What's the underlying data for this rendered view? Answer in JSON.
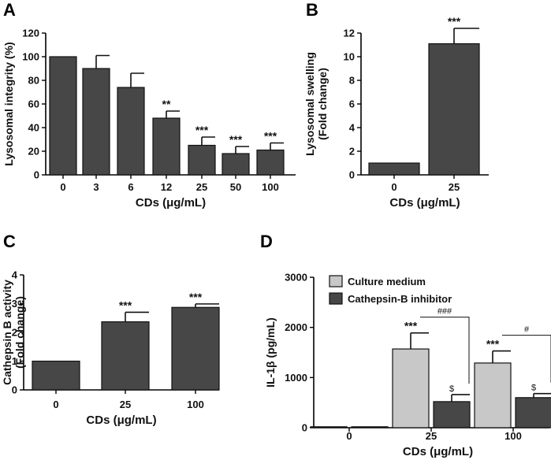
{
  "chart_data": [
    {
      "panel": "A",
      "type": "bar",
      "xlabel": "CDs (μg/mL)",
      "ylabel": "Lysosomal integrity (%)",
      "ylim": [
        0,
        120
      ],
      "yticks": [
        0,
        20,
        40,
        60,
        80,
        100,
        120
      ],
      "categories": [
        "0",
        "3",
        "6",
        "12",
        "25",
        "50",
        "100"
      ],
      "values": [
        100,
        90,
        74,
        48,
        25,
        18,
        21
      ],
      "errors": [
        0,
        11,
        12,
        6,
        7,
        6,
        6
      ],
      "significance": [
        "",
        "",
        "",
        "**",
        "***",
        "***",
        "***"
      ]
    },
    {
      "panel": "B",
      "type": "bar",
      "xlabel": "CDs (μg/mL)",
      "ylabel_lines": [
        "Lysosomal swelling",
        "(Fold change)"
      ],
      "ylim": [
        0,
        12
      ],
      "yticks": [
        0,
        2,
        4,
        6,
        8,
        10,
        12
      ],
      "categories": [
        "0",
        "25"
      ],
      "values": [
        1.0,
        11.1
      ],
      "errors": [
        0,
        1.3
      ],
      "significance": [
        "",
        "***"
      ]
    },
    {
      "panel": "C",
      "type": "bar",
      "xlabel": "CDs (μg/mL)",
      "ylabel_lines": [
        "Cathepsin B activity",
        "(Fold change)"
      ],
      "ylim": [
        0,
        4
      ],
      "yticks": [
        0,
        1,
        2,
        3,
        4
      ],
      "categories": [
        "0",
        "25",
        "100"
      ],
      "values": [
        1.0,
        2.37,
        2.87
      ],
      "errors": [
        0,
        0.33,
        0.12
      ],
      "significance": [
        "",
        "***",
        "***"
      ]
    },
    {
      "panel": "D",
      "type": "bar",
      "xlabel": "CDs (μg/mL)",
      "ylabel": "IL-1β (pg/mL)",
      "ylim": [
        0,
        3000
      ],
      "yticks": [
        0,
        1000,
        2000,
        3000
      ],
      "categories": [
        "0",
        "25",
        "100"
      ],
      "legend_position": "top-left",
      "series": [
        {
          "name": "Culture medium",
          "color": "#c8c8c8",
          "values": [
            0,
            1570,
            1290
          ],
          "errors": [
            0,
            320,
            240
          ],
          "significance": [
            "",
            "***",
            "***"
          ]
        },
        {
          "name": "Cathepsin-B inhibitor",
          "color": "#474747",
          "values": [
            0,
            520,
            600
          ],
          "errors": [
            0,
            140,
            80
          ],
          "significance": [
            "",
            "$",
            "$"
          ]
        }
      ],
      "comparisons": [
        {
          "category": "25",
          "label": "###"
        },
        {
          "category": "100",
          "label": "#"
        }
      ]
    }
  ]
}
